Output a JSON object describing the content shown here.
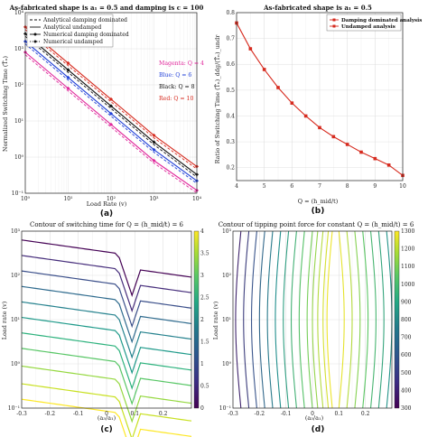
{
  "chart_data": [
    {
      "id": "a",
      "type": "line",
      "panel_label": "(a)",
      "title": "As-fabricated shape is a₁ = 0.5  and damping is c = 100",
      "xlabel": "Load Rate (v)",
      "ylabel": "Normalized Switching Time (T̄ₙ)",
      "xscale": "log",
      "yscale": "log",
      "xlim": [
        1,
        10000
      ],
      "ylim": [
        0.1,
        10000
      ],
      "xticks": [
        "10⁰",
        "10¹",
        "10²",
        "10³",
        "10⁴"
      ],
      "yticks": [
        "10⁻¹",
        "10⁰",
        "10¹",
        "10²",
        "10³",
        "10⁴"
      ],
      "legend": [
        "Analytical damping dominated",
        "Analytical undamped",
        "Numerical damping dominated",
        "Numerical undamped"
      ],
      "annotations": [
        {
          "text": "Magenta: Q = 4",
          "color": "#e0249a"
        },
        {
          "text": "Blue: Q = 6",
          "color": "#1f3fd8"
        },
        {
          "text": "Black: Q = 8",
          "color": "#111111"
        },
        {
          "text": "Red: Q = 10",
          "color": "#d62a1e"
        }
      ],
      "x": [
        1,
        10,
        100,
        1000,
        10000
      ],
      "series": [
        {
          "name": "Q = 4",
          "color": "#e0249a",
          "values": [
            800,
            80,
            8,
            0.8,
            0.12
          ]
        },
        {
          "name": "Q = 6",
          "color": "#1f3fd8",
          "values": [
            1600,
            160,
            16,
            1.6,
            0.22
          ]
        },
        {
          "name": "Q = 8",
          "color": "#111111",
          "values": [
            2600,
            260,
            26,
            2.6,
            0.33
          ]
        },
        {
          "name": "Q = 10",
          "color": "#d62a1e",
          "values": [
            4000,
            400,
            40,
            4,
            0.55
          ]
        }
      ]
    },
    {
      "id": "b",
      "type": "line",
      "panel_label": "(b)",
      "title": "As-fabricated shape is a₁ = 0.5",
      "xlabel": "Q = (h_mid/t)",
      "ylabel": "Ratio of Switching Time (T̄ₙ)_ddg/(T̄ₙ)_undr",
      "xlim": [
        4,
        10
      ],
      "ylim": [
        0.15,
        0.8
      ],
      "xticks": [
        "4",
        "5",
        "6",
        "7",
        "8",
        "9",
        "10"
      ],
      "yticks": [
        "0.2",
        "0.3",
        "0.4",
        "0.5",
        "0.6",
        "0.7",
        "0.8"
      ],
      "legend": [
        "Damping dominated analysis",
        "Undamped analysis"
      ],
      "x": [
        4,
        4.5,
        5,
        5.5,
        6,
        6.5,
        7,
        7.5,
        8,
        8.5,
        9,
        9.5,
        10
      ],
      "series": [
        {
          "name": "ratio",
          "color": "#d62a1e",
          "values": [
            0.76,
            0.66,
            0.58,
            0.51,
            0.45,
            0.4,
            0.355,
            0.32,
            0.29,
            0.26,
            0.235,
            0.21,
            0.17
          ]
        }
      ]
    },
    {
      "id": "c",
      "type": "contour",
      "panel_label": "(c)",
      "title": "Contour of switching time for Q = (h_mid/t) = 6",
      "xlabel": "(a₃/a₁)",
      "ylabel": "Load rate (v)",
      "xlim": [
        -0.3,
        0.3
      ],
      "ylim": [
        0.1,
        1000
      ],
      "xticks": [
        "-0.3",
        "-0.2",
        "-0.1",
        "0",
        "0.1",
        "0.2"
      ],
      "yticks": [
        "10⁻¹",
        "10⁰",
        "10¹",
        "10²",
        "10³"
      ],
      "colorbar_ticks": [
        "0",
        "0.5",
        "1",
        "1.5",
        "2",
        "2.5",
        "3",
        "3.5",
        "4"
      ],
      "levels_log_v_at_left": [
        2.8,
        2.45,
        2.1,
        1.75,
        1.4,
        1.05,
        0.7,
        0.35,
        -0.05,
        -0.45,
        -0.8
      ]
    },
    {
      "id": "d",
      "type": "contour",
      "panel_label": "(d)",
      "title": "Contour of tipping point force for constant Q = (h_mid/t) = 6",
      "xlabel": "(a₃/a₁)",
      "ylabel": "Load rate (v)",
      "xlim": [
        -0.3,
        0.3
      ],
      "ylim": [
        0.1,
        1000
      ],
      "xticks": [
        "-0.3",
        "-0.2",
        "-0.1",
        "0",
        "0.1",
        "0.2"
      ],
      "yticks": [
        "10⁻¹",
        "10⁰",
        "10¹",
        "10²",
        "10³"
      ],
      "colorbar_ticks": [
        "300",
        "400",
        "500",
        "600",
        "700",
        "800",
        "900",
        "1000",
        "1100",
        "1200",
        "1300"
      ],
      "contour_x_positions": [
        -0.27,
        -0.24,
        -0.21,
        -0.18,
        -0.15,
        -0.12,
        -0.09,
        -0.06,
        -0.03,
        0.0,
        0.02,
        0.04,
        0.06,
        0.075,
        0.1,
        0.13,
        0.16,
        0.19,
        0.22,
        0.25,
        0.28
      ]
    }
  ]
}
